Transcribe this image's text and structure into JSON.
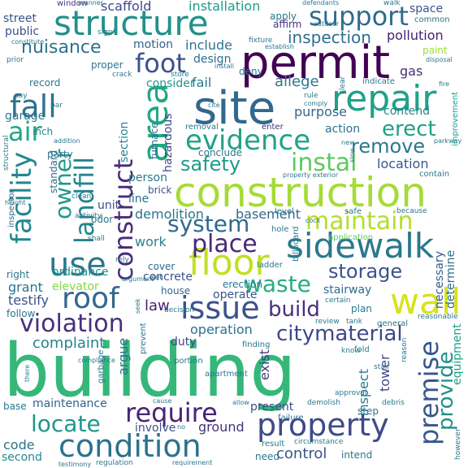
{
  "palette": {
    "dark_purple": "#440154",
    "indigo": "#472d7b",
    "blue": "#3b528b",
    "steel": "#2c728e",
    "teal": "#21918c",
    "green_teal": "#28ae80",
    "green": "#5ec962",
    "lime": "#addc30",
    "yellow": "#fde725"
  },
  "words": [
    {
      "text": "building",
      "color": "#35b779"
    },
    {
      "text": "construction",
      "color": "#a5db36"
    },
    {
      "text": "permit",
      "color": "#440154"
    },
    {
      "text": "site",
      "color": "#31688e"
    },
    {
      "text": "structure",
      "color": "#21918c"
    },
    {
      "text": "repair",
      "color": "#1fa187"
    },
    {
      "text": "sidewalk",
      "color": "#2a788e"
    },
    {
      "text": "floor",
      "color": "#c2df23"
    },
    {
      "text": "condition",
      "color": "#2c728e"
    },
    {
      "text": "property",
      "color": "#3e4a89"
    },
    {
      "text": "evidence",
      "color": "#20a386"
    },
    {
      "text": "fall",
      "color": "#2c728e"
    },
    {
      "text": "area",
      "color": "#22a884"
    },
    {
      "text": "wall",
      "color": "#d8e219"
    },
    {
      "text": "use",
      "color": "#2a788e"
    },
    {
      "text": "roof",
      "color": "#31688e"
    },
    {
      "text": "issue",
      "color": "#3b528b"
    },
    {
      "text": "landfill",
      "color": "#25848e"
    },
    {
      "text": "construct",
      "color": "#472c7a"
    },
    {
      "text": "facility",
      "color": "#24868e"
    },
    {
      "text": "owner",
      "color": "#1f9a8a"
    },
    {
      "text": "support",
      "color": "#2f6b8e"
    },
    {
      "text": "foot",
      "color": "#3b528b"
    },
    {
      "text": "nuisance",
      "color": "#2c728e"
    },
    {
      "text": "air",
      "color": "#22a884"
    },
    {
      "text": "erect",
      "color": "#1fa187"
    },
    {
      "text": "remove",
      "color": "#2a788e"
    },
    {
      "text": "instal",
      "color": "#5ec962"
    },
    {
      "text": "safety",
      "color": "#1e9c89"
    },
    {
      "text": "system",
      "color": "#31688e"
    },
    {
      "text": "maintain",
      "color": "#b5de2b"
    },
    {
      "text": "place",
      "color": "#482878"
    },
    {
      "text": "waste",
      "color": "#27ad81"
    },
    {
      "text": "storage",
      "color": "#3b528b"
    },
    {
      "text": "violation",
      "color": "#472f7d"
    },
    {
      "text": "build",
      "color": "#46307e"
    },
    {
      "text": "citymaterial",
      "color": "#3f4889"
    },
    {
      "text": "require",
      "color": "#482475"
    },
    {
      "text": "locate",
      "color": "#1f968b"
    },
    {
      "text": "premise",
      "color": "#39568c"
    },
    {
      "text": "provide",
      "color": "#21918c"
    },
    {
      "text": "inspection",
      "color": "#2d708e"
    },
    {
      "text": "scaffold",
      "color": "#3e4989"
    },
    {
      "text": "installation",
      "color": "#1e9b8a"
    },
    {
      "text": "pollution",
      "color": "#482173"
    },
    {
      "text": "location",
      "color": "#39568c"
    },
    {
      "text": "operation",
      "color": "#2c728e"
    },
    {
      "text": "complaint",
      "color": "#25848e"
    },
    {
      "text": "maintenance",
      "color": "#33638d"
    },
    {
      "text": "present",
      "color": "#3e4a89"
    },
    {
      "text": "control",
      "color": "#3b528b"
    },
    {
      "text": "exist",
      "color": "#443983"
    },
    {
      "text": "inspect",
      "color": "#2a768e"
    },
    {
      "text": "tower",
      "color": "#3f4788"
    },
    {
      "text": "equipment",
      "color": "#1fa088"
    },
    {
      "text": "necessary",
      "color": "#375a8c"
    },
    {
      "text": "determine",
      "color": "#2e6e8e"
    },
    {
      "text": "demolition",
      "color": "#2a768e"
    },
    {
      "text": "basement",
      "color": "#31688e"
    },
    {
      "text": "work",
      "color": "#26828e"
    },
    {
      "text": "concrete",
      "color": "#3b528b"
    },
    {
      "text": "elevator",
      "color": "#86d549"
    },
    {
      "text": "grant",
      "color": "#2c728e"
    },
    {
      "text": "testify",
      "color": "#3b528b"
    },
    {
      "text": "law",
      "color": "#482071"
    },
    {
      "text": "duty",
      "color": "#404688"
    },
    {
      "text": "argue",
      "color": "#2c728e"
    },
    {
      "text": "ground",
      "color": "#46337e"
    },
    {
      "text": "involve",
      "color": "#3b528b"
    },
    {
      "text": "code",
      "color": "#2c728e"
    },
    {
      "text": "second",
      "color": "#238a8d"
    },
    {
      "text": "design",
      "color": "#2e6d8e"
    },
    {
      "text": "include",
      "color": "#2a788e"
    },
    {
      "text": "motion",
      "color": "#33638d"
    },
    {
      "text": "purpose",
      "color": "#31688e"
    },
    {
      "text": "consider",
      "color": "#1f9a8a"
    },
    {
      "text": "fail",
      "color": "#2a788e"
    },
    {
      "text": "allege",
      "color": "#2a788e"
    },
    {
      "text": "gas",
      "color": "#472c7a"
    },
    {
      "text": "contend",
      "color": "#25848e"
    },
    {
      "text": "action",
      "color": "#2c728e"
    },
    {
      "text": "garage",
      "color": "#2a768e"
    },
    {
      "text": "inch",
      "color": "#23888e"
    },
    {
      "text": "party",
      "color": "#2a788e"
    },
    {
      "text": "furnace",
      "color": "#2e6e8e"
    },
    {
      "text": "section",
      "color": "#25848e"
    },
    {
      "text": "hazardous",
      "color": "#3e4a89"
    },
    {
      "text": "conclude",
      "color": "#2a788e"
    },
    {
      "text": "person",
      "color": "#2a788e"
    },
    {
      "text": "line",
      "color": "#2e6e8e"
    },
    {
      "text": "unit",
      "color": "#3b528b"
    },
    {
      "text": "standard",
      "color": "#31688e"
    },
    {
      "text": "odor",
      "color": "#2a788e"
    },
    {
      "text": "cover",
      "color": "#31688e"
    },
    {
      "text": "ordinance",
      "color": "#21918c"
    },
    {
      "text": "erection",
      "color": "#2a788e"
    },
    {
      "text": "operate",
      "color": "#3b528b"
    },
    {
      "text": "stairway",
      "color": "#2e6e8e"
    },
    {
      "text": "plan",
      "color": "#2a788e"
    },
    {
      "text": "house",
      "color": "#31688e"
    },
    {
      "text": "right",
      "color": "#2a788e"
    },
    {
      "text": "inspector",
      "color": "#31688e"
    },
    {
      "text": "street",
      "color": "#3b528b"
    },
    {
      "text": "public",
      "color": "#3b528b"
    },
    {
      "text": "record",
      "color": "#2a788e"
    },
    {
      "text": "proper",
      "color": "#2a788e"
    },
    {
      "text": "window",
      "color": "#443983"
    },
    {
      "text": "apply",
      "color": "#2a788e"
    },
    {
      "text": "affirm",
      "color": "#46337e"
    },
    {
      "text": "deny",
      "color": "#2a788e"
    },
    {
      "text": "paint",
      "color": "#a2da37"
    },
    {
      "text": "space",
      "color": "#3b528b"
    },
    {
      "text": "common",
      "color": "#2a788e"
    },
    {
      "text": "removal",
      "color": "#2a788e"
    },
    {
      "text": "enter",
      "color": "#472c7a"
    },
    {
      "text": "indicate",
      "color": "#2a788e"
    },
    {
      "text": "improvement",
      "color": "#1fa088"
    },
    {
      "text": "brick",
      "color": "#3b528b"
    },
    {
      "text": "level",
      "color": "#2a788e"
    },
    {
      "text": "safe",
      "color": "#2a788e"
    },
    {
      "text": "hole",
      "color": "#2a788e"
    },
    {
      "text": "application",
      "color": "#5ec962"
    },
    {
      "text": "ladder",
      "color": "#2a788e"
    },
    {
      "text": "billboard",
      "color": "#2a788e"
    },
    {
      "text": "finding",
      "color": "#2a788e"
    },
    {
      "text": "general",
      "color": "#2a788e"
    },
    {
      "text": "fold",
      "color": "#2a788e"
    },
    {
      "text": "intend",
      "color": "#2a788e"
    },
    {
      "text": "step",
      "color": "#2a788e"
    },
    {
      "text": "result",
      "color": "#2a788e"
    },
    {
      "text": "failure",
      "color": "#2a788e"
    },
    {
      "text": "portion",
      "color": "#2a788e"
    },
    {
      "text": "apartment",
      "color": "#2a788e"
    },
    {
      "text": "prevent",
      "color": "#2a788e"
    },
    {
      "text": "garbage",
      "color": "#2a788e"
    },
    {
      "text": "base",
      "color": "#2a788e"
    },
    {
      "text": "follow",
      "color": "#2a788e"
    },
    {
      "text": "need",
      "color": "#2a788e"
    },
    {
      "text": "contain",
      "color": "#2a788e"
    },
    {
      "text": "clean",
      "color": "#2a788e"
    },
    {
      "text": "activity",
      "color": "#2a788e"
    },
    {
      "text": "shall",
      "color": "#2a788e"
    },
    {
      "text": "rely",
      "color": "#2a788e"
    },
    {
      "text": "set",
      "color": "#2a788e"
    },
    {
      "text": "decision",
      "color": "#2a788e"
    },
    {
      "text": "certain",
      "color": "#2a788e"
    },
    {
      "text": "review",
      "color": "#2a788e"
    },
    {
      "text": "tank",
      "color": "#2a788e"
    },
    {
      "text": "reasonable",
      "color": "#2a788e"
    },
    {
      "text": "stair",
      "color": "#2a788e"
    },
    {
      "text": "reason",
      "color": "#2a788e"
    },
    {
      "text": "approval",
      "color": "#2a788e"
    },
    {
      "text": "demolish",
      "color": "#2a788e"
    },
    {
      "text": "debris",
      "color": "#2a788e"
    },
    {
      "text": "circumstance",
      "color": "#2a788e"
    },
    {
      "text": "however",
      "color": "#2a788e"
    },
    {
      "text": "know",
      "color": "#2a788e"
    },
    {
      "text": "sign",
      "color": "#2a788e"
    },
    {
      "text": "say",
      "color": "#2a788e"
    },
    {
      "text": "par",
      "color": "#2a788e"
    },
    {
      "text": "prior",
      "color": "#2a788e"
    },
    {
      "text": "constitute",
      "color": "#2a788e"
    },
    {
      "text": "manner",
      "color": "#2a788e"
    },
    {
      "text": "defendants",
      "color": "#2a788e"
    },
    {
      "text": "walk",
      "color": "#2a788e"
    },
    {
      "text": "establish",
      "color": "#2a788e"
    },
    {
      "text": "outdoor",
      "color": "#2a788e"
    },
    {
      "text": "fixture",
      "color": "#2a788e"
    },
    {
      "text": "crack",
      "color": "#2a788e"
    },
    {
      "text": "store",
      "color": "#2a788e"
    },
    {
      "text": "rule",
      "color": "#2a788e"
    },
    {
      "text": "comply",
      "color": "#2a788e"
    },
    {
      "text": "cite",
      "color": "#2a788e"
    },
    {
      "text": "disposal",
      "color": "#2a788e"
    },
    {
      "text": "fire",
      "color": "#2a788e"
    },
    {
      "text": "parkway",
      "color": "#2a788e"
    },
    {
      "text": "new",
      "color": "#2a788e"
    },
    {
      "text": "slow",
      "color": "#2a788e"
    },
    {
      "text": "structural",
      "color": "#2a788e"
    },
    {
      "text": "height",
      "color": "#2a788e"
    },
    {
      "text": "addition",
      "color": "#2a788e"
    },
    {
      "text": "because",
      "color": "#2a788e"
    },
    {
      "text": "seek",
      "color": "#2a788e"
    },
    {
      "text": "argument",
      "color": "#2a788e"
    },
    {
      "text": "compliance",
      "color": "#2a788e"
    },
    {
      "text": "testimony",
      "color": "#2a788e"
    },
    {
      "text": "regulation",
      "color": "#2a788e"
    },
    {
      "text": "allow",
      "color": "#2a788e"
    },
    {
      "text": "cause",
      "color": "#2a788e"
    },
    {
      "text": "there",
      "color": "#2a788e"
    },
    {
      "text": "no",
      "color": "#2a788e"
    },
    {
      "text": "install",
      "color": "#2a788e"
    },
    {
      "text": "clear",
      "color": "#2a788e"
    },
    {
      "text": "property exterior",
      "color": "#2a788e"
    },
    {
      "text": "requirement",
      "color": "#2a788e"
    },
    {
      "text": "cock",
      "color": "#2a788e"
    }
  ]
}
